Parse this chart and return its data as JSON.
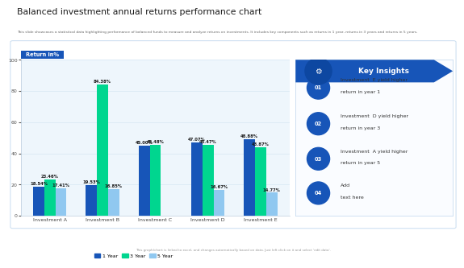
{
  "title": "Balanced investment annual returns performance chart",
  "subtitle": "This slide showcases a statistical data highlighting performance of balanced funds to measure and analyze returns on investments. It includes key components such as returns in 1 year, returns in 3 years and returns in 5 years.",
  "footer": "This graph/chart is linked to excel, and changes automatically based on data. Just left click on it and select 'edit data'.",
  "ylabel": "Return in%",
  "categories": [
    "Investment A",
    "Investment B",
    "Investment C",
    "Investment D",
    "Investment E"
  ],
  "year1": [
    18.54,
    19.53,
    45.0,
    47.07,
    48.88
  ],
  "year3": [
    23.46,
    84.38,
    45.48,
    45.47,
    43.87
  ],
  "year5": [
    17.41,
    16.85,
    0.0,
    16.67,
    14.77
  ],
  "year1_labels": [
    "18.54%",
    "19.53%",
    "45.00%",
    "47.07%",
    "48.88%"
  ],
  "year3_labels": [
    "23.46%",
    "84.38%",
    "45.48%",
    "45.47%",
    "43.87%"
  ],
  "year5_labels": [
    "17.41%",
    "16.85%",
    "",
    "16.67%",
    "14.77%"
  ],
  "bar_color_1yr": "#1755B8",
  "bar_color_3yr": "#00D68F",
  "bar_color_5yr": "#90C8F0",
  "bg_color": "#FFFFFF",
  "chart_bg": "#EEF6FC",
  "title_color": "#1A1A1A",
  "ylabel_bg": "#1755B8",
  "ylabel_text_color": "#FFFFFF",
  "key_insights_title": "Key Insights",
  "key_insights_line1": [
    "Investment  E yield higher",
    "Investment  D yield higher",
    "Investment  A yield higher",
    "Add"
  ],
  "key_insights_line2": [
    "return in year 1",
    "return in year 3",
    "return in year 5",
    "text here"
  ],
  "insight_numbers": [
    "01",
    "02",
    "03",
    "04"
  ],
  "ylim": [
    0,
    100
  ],
  "legend_labels": [
    "1 Year",
    "3 Year",
    "5 Year"
  ],
  "outer_border_color": "#C8DCF0",
  "ki_border_color": "#C8DCF0",
  "ki_bg": "#FAFCFF",
  "ki_header_color": "#1755B8",
  "ki_header_arrow_color": "#1060C8",
  "circle_color": "#1755B8",
  "gear_circle_color": "#0D47A1"
}
